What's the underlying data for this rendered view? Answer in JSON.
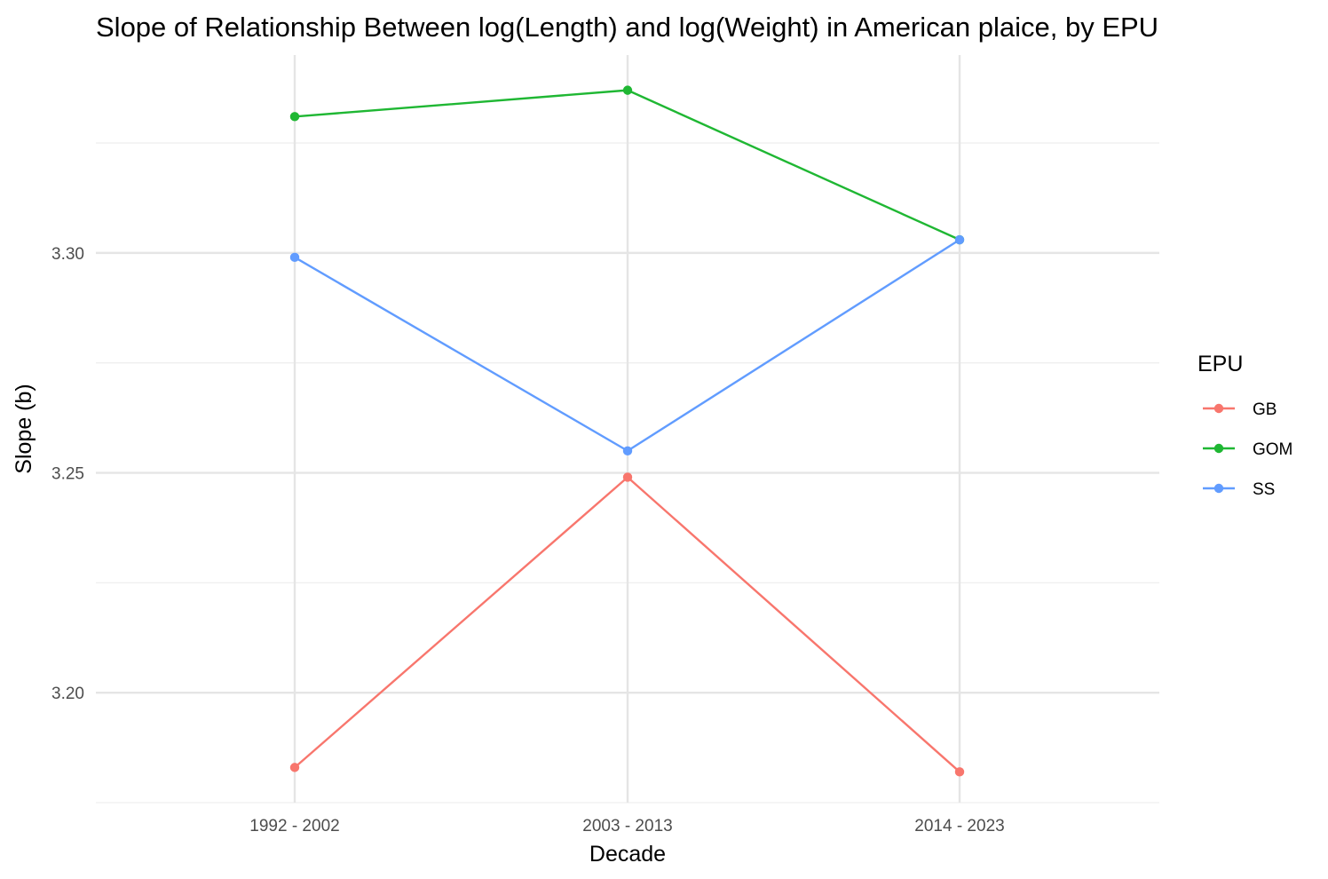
{
  "chart_data": {
    "type": "line",
    "title": "Slope of Relationship Between log(Length) and log(Weight) in American plaice, by EPU",
    "xlabel": "Decade",
    "ylabel": "Slope (b)",
    "categories": [
      "1992 - 2002",
      "2003 - 2013",
      "2014 - 2023"
    ],
    "y_ticks": [
      3.2,
      3.25,
      3.3
    ],
    "y_tick_labels": [
      "3.20",
      "3.25",
      "3.30"
    ],
    "ylim": [
      3.175,
      3.345
    ],
    "grid": true,
    "legend": {
      "title": "EPU",
      "position": "right"
    },
    "series": [
      {
        "name": "GB",
        "color": "#F8766D",
        "values": [
          3.183,
          3.249,
          3.182
        ]
      },
      {
        "name": "GOM",
        "color": "#1FB733",
        "values": [
          3.331,
          3.337,
          3.303
        ]
      },
      {
        "name": "SS",
        "color": "#619CFF",
        "values": [
          3.299,
          3.255,
          3.303
        ]
      }
    ]
  }
}
